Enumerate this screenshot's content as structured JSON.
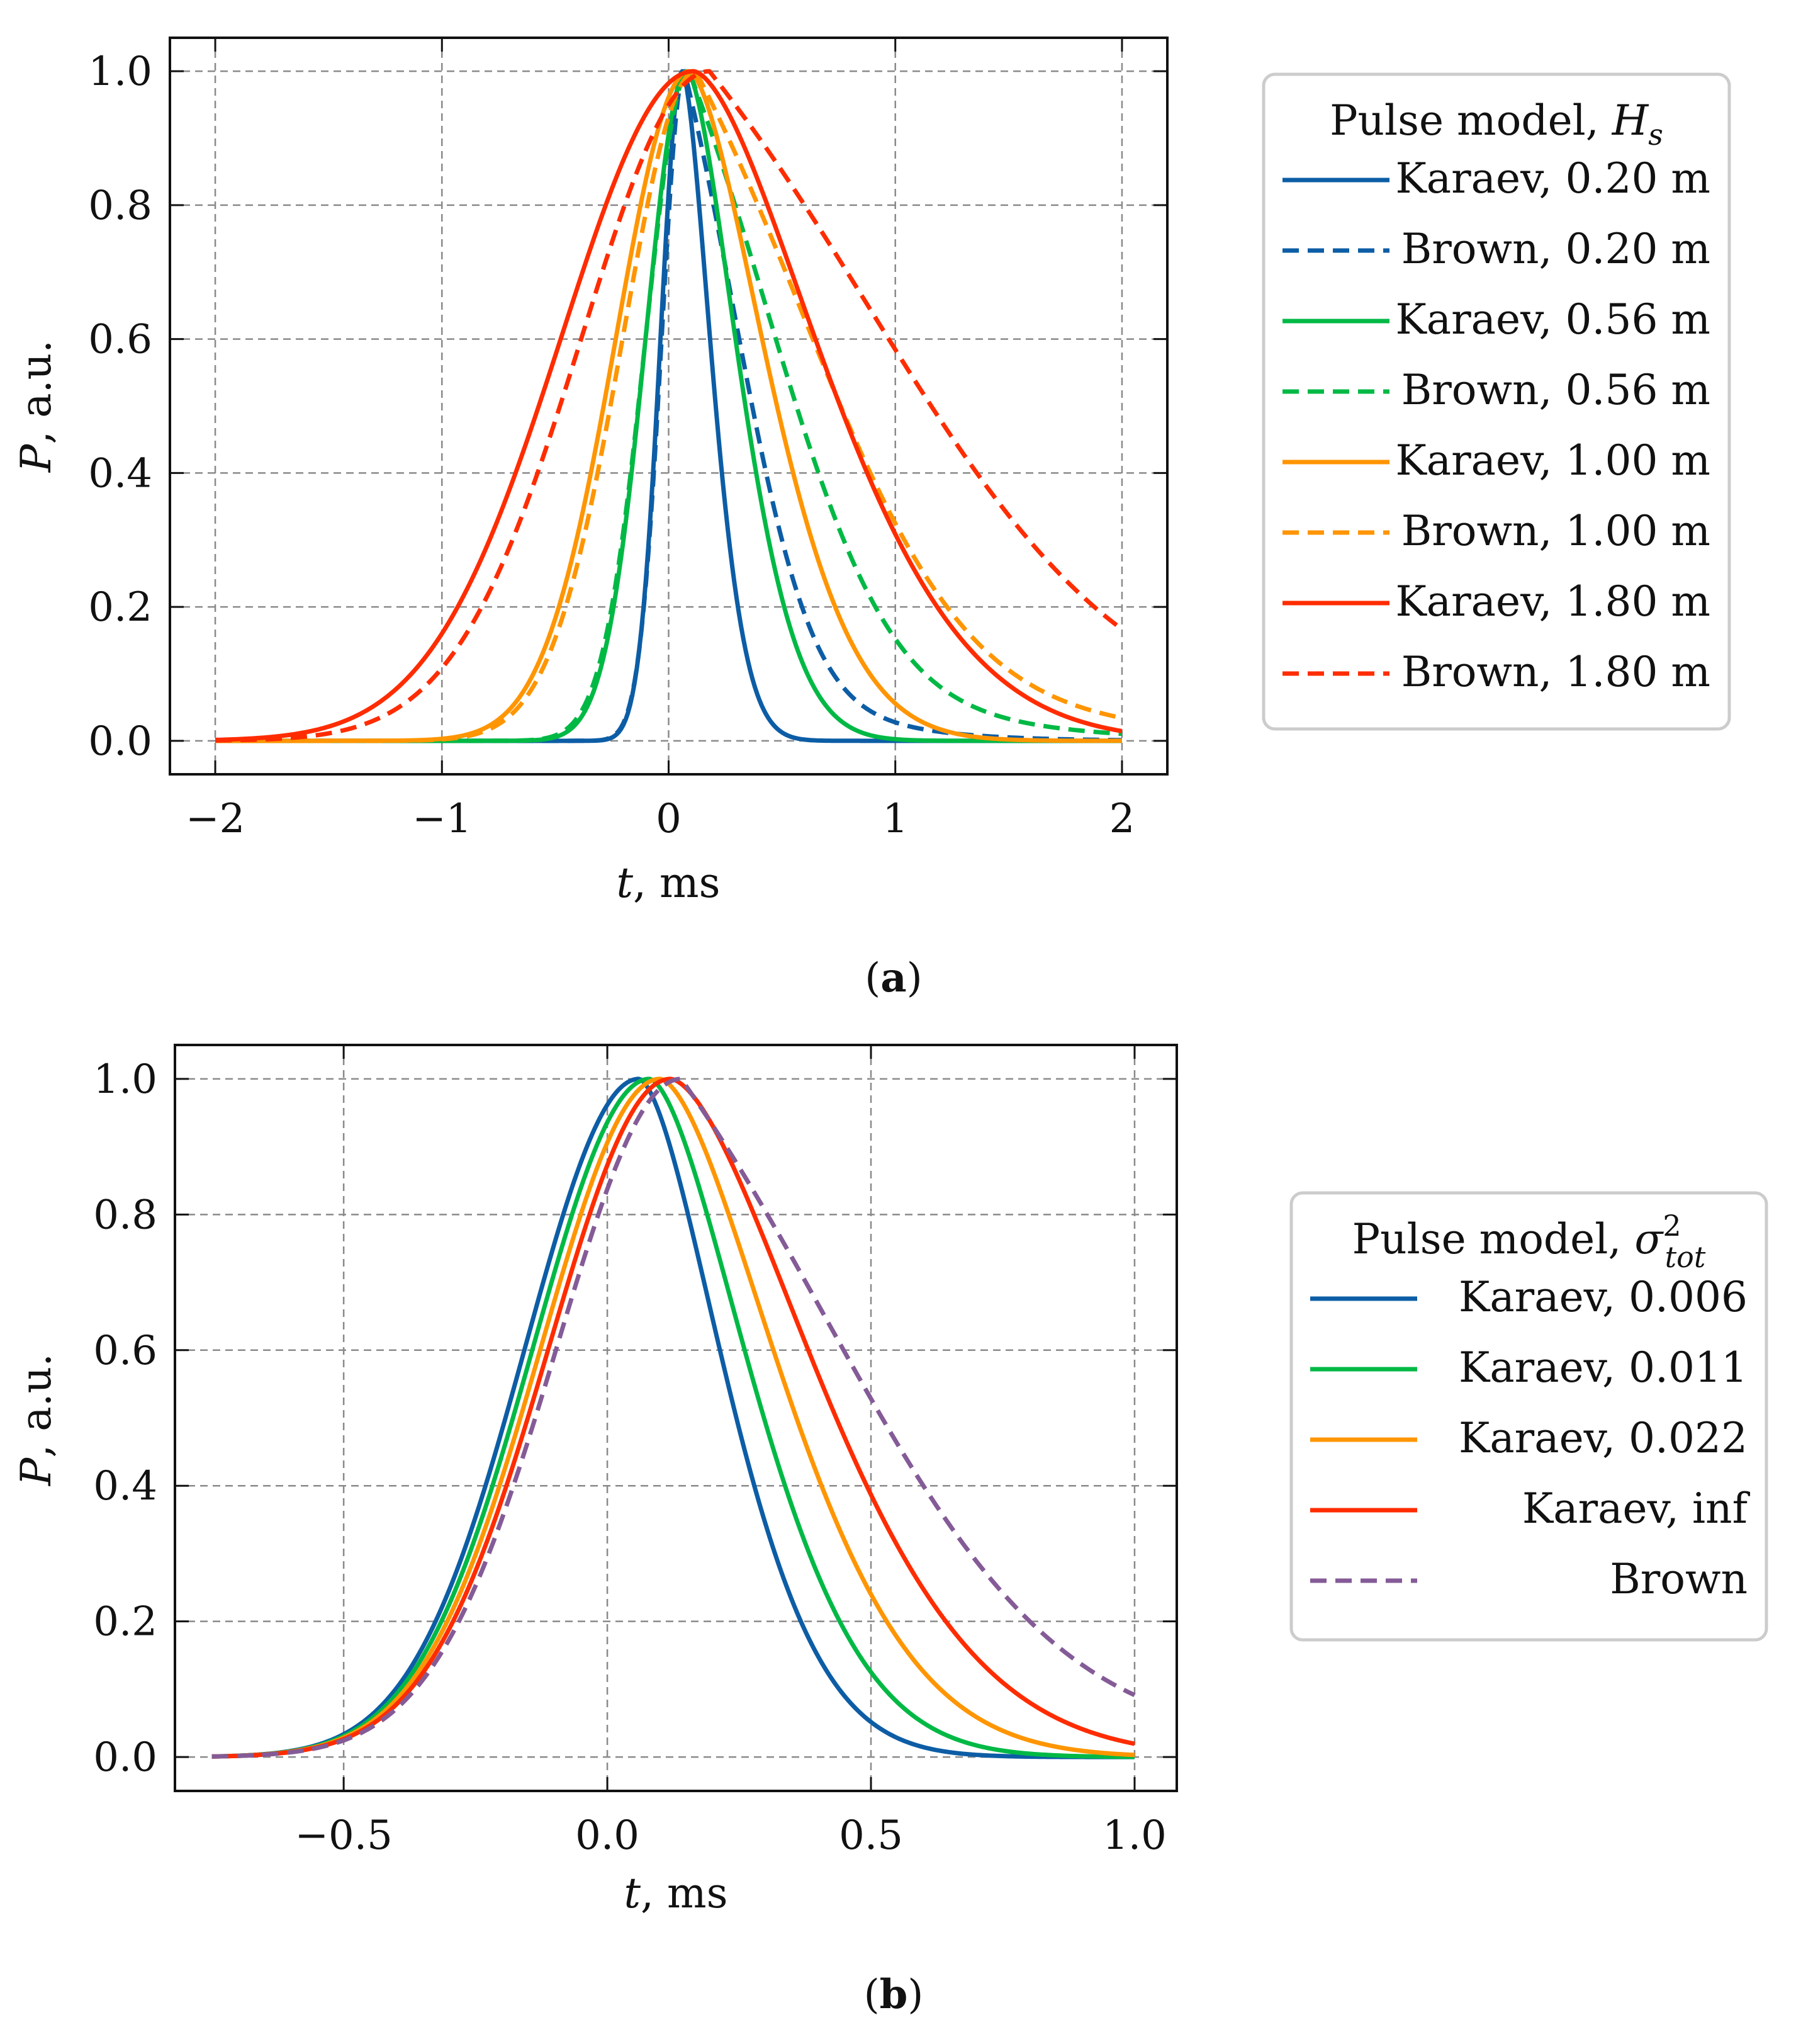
{
  "chart_data": [
    {
      "type": "line",
      "panel_caption": "a",
      "xlabel_var": "t",
      "xlabel_unit": ", ms",
      "ylabel_var": "P",
      "ylabel_unit": ", a.u.",
      "xlim": [
        -2.2,
        2.2
      ],
      "ylim": [
        -0.05,
        1.05
      ],
      "xticks": [
        -2,
        -1,
        0,
        1,
        2
      ],
      "xtick_labels": [
        "−2",
        "−1",
        "0",
        "1",
        "2"
      ],
      "yticks": [
        0.0,
        0.2,
        0.4,
        0.6,
        0.8,
        1.0
      ],
      "ytick_labels": [
        "0.0",
        "0.2",
        "0.4",
        "0.6",
        "0.8",
        "1.0"
      ],
      "grid": true,
      "legend_title_text": "Pulse model, ",
      "legend_title_var": "H",
      "legend_title_sub": "s",
      "legend_title_sup": "",
      "legend_placement": "right",
      "series": [
        {
          "name": "Karaev, 0.20 m",
          "color": "#0C5DA5",
          "dash": "solid",
          "model": "karaev",
          "peak": 0.06,
          "sigma_left": 0.095,
          "tau_right": 0.16,
          "x_range": [
            -2,
            2
          ]
        },
        {
          "name": "Brown, 0.20 m",
          "color": "#0C5DA5",
          "dash": "dashed",
          "model": "brown",
          "peak": 0.07,
          "sigma_left": 0.1,
          "tau_right": 0.29,
          "x_range": [
            -2,
            2
          ]
        },
        {
          "name": "Karaev, 0.56 m",
          "color": "#00B945",
          "dash": "solid",
          "model": "karaev",
          "peak": 0.08,
          "sigma_left": 0.18,
          "tau_right": 0.28,
          "x_range": [
            -2,
            2
          ]
        },
        {
          "name": "Brown, 0.56 m",
          "color": "#00B945",
          "dash": "dashed",
          "model": "brown",
          "peak": 0.09,
          "sigma_left": 0.19,
          "tau_right": 0.46,
          "x_range": [
            -2,
            2
          ]
        },
        {
          "name": "Karaev, 1.00 m",
          "color": "#FF9500",
          "dash": "solid",
          "model": "karaev",
          "peak": 0.09,
          "sigma_left": 0.32,
          "tau_right": 0.42,
          "x_range": [
            -2,
            2
          ]
        },
        {
          "name": "Brown, 1.00 m",
          "color": "#FF9500",
          "dash": "dashed",
          "model": "brown",
          "peak": 0.12,
          "sigma_left": 0.32,
          "tau_right": 0.62,
          "x_range": [
            -2,
            2
          ]
        },
        {
          "name": "Karaev, 1.80 m",
          "color": "#FF2C00",
          "dash": "solid",
          "model": "karaev",
          "peak": 0.11,
          "sigma_left": 0.58,
          "tau_right": 0.7,
          "x_range": [
            -2,
            2
          ]
        },
        {
          "name": "Brown, 1.80 m",
          "color": "#FF2C00",
          "dash": "dashed",
          "model": "brown",
          "peak": 0.18,
          "sigma_left": 0.56,
          "tau_right": 0.95,
          "x_range": [
            -2,
            2
          ]
        }
      ]
    },
    {
      "type": "line",
      "panel_caption": "b",
      "xlabel_var": "t",
      "xlabel_unit": ", ms",
      "ylabel_var": "P",
      "ylabel_unit": ", a.u.",
      "xlim": [
        -0.82,
        1.08
      ],
      "ylim": [
        -0.05,
        1.05
      ],
      "xticks": [
        -0.5,
        0.0,
        0.5,
        1.0
      ],
      "xtick_labels": [
        "−0.5",
        "0.0",
        "0.5",
        "1.0"
      ],
      "yticks": [
        0.0,
        0.2,
        0.4,
        0.6,
        0.8,
        1.0
      ],
      "ytick_labels": [
        "0.0",
        "0.2",
        "0.4",
        "0.6",
        "0.8",
        "1.0"
      ],
      "grid": true,
      "legend_title_text": "Pulse model, ",
      "legend_title_var": "σ",
      "legend_title_sub": "tot",
      "legend_title_sup": "2",
      "legend_placement": "right",
      "series": [
        {
          "name": "Karaev, 0.006",
          "color": "#0C5DA5",
          "dash": "solid",
          "model": "karaev",
          "peak": 0.06,
          "sigma_left": 0.215,
          "tau_right": 0.2,
          "x_range": [
            -0.75,
            1.0
          ]
        },
        {
          "name": "Karaev, 0.011",
          "color": "#00B945",
          "dash": "solid",
          "model": "karaev",
          "peak": 0.08,
          "sigma_left": 0.22,
          "tau_right": 0.235,
          "x_range": [
            -0.75,
            1.0
          ]
        },
        {
          "name": "Karaev, 0.022",
          "color": "#FF9500",
          "dash": "solid",
          "model": "karaev",
          "peak": 0.1,
          "sigma_left": 0.225,
          "tau_right": 0.28,
          "x_range": [
            -0.75,
            1.0
          ]
        },
        {
          "name": "Karaev, inf",
          "color": "#FF2C00",
          "dash": "solid",
          "model": "karaev",
          "peak": 0.12,
          "sigma_left": 0.23,
          "tau_right": 0.34,
          "x_range": [
            -0.75,
            1.0
          ]
        },
        {
          "name": "Brown",
          "color": "#845B97",
          "dash": "dashed",
          "model": "brown",
          "peak": 0.14,
          "sigma_left": 0.235,
          "tau_right": 0.37,
          "x_range": [
            -0.75,
            1.0
          ]
        }
      ]
    }
  ]
}
